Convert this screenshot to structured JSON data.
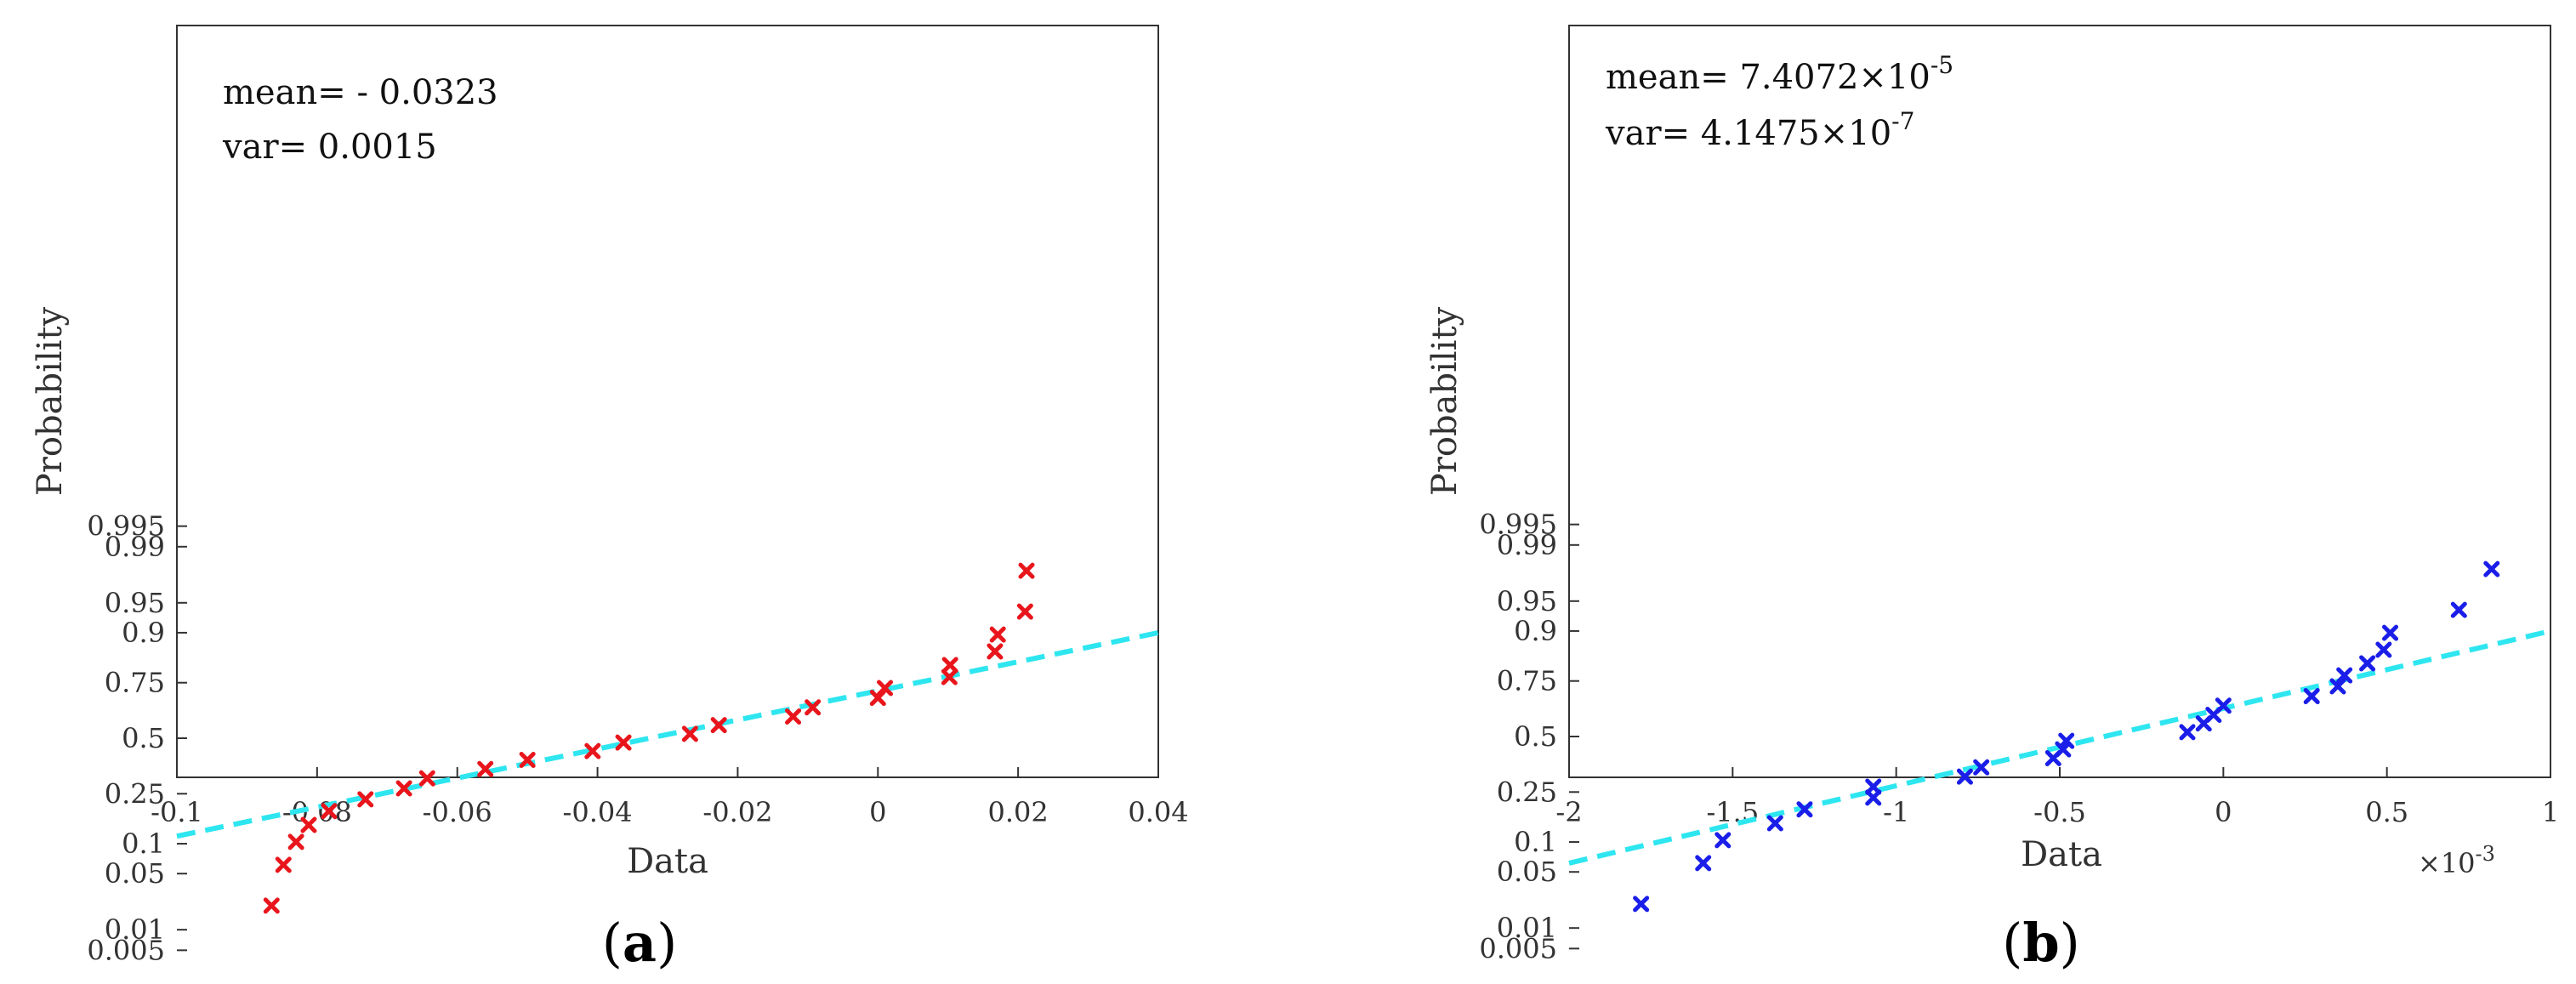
{
  "chart_data": [
    {
      "type": "scatter",
      "panel_label_open": "(",
      "panel_label": "a",
      "panel_label_close": ")",
      "xlabel": "Data",
      "ylabel": "Probability",
      "xlim": [
        -0.1,
        0.04
      ],
      "x_ticks": [
        -0.1,
        -0.08,
        -0.06,
        -0.04,
        -0.02,
        0,
        0.02,
        0.04
      ],
      "x_tick_labels": [
        "-0.1",
        "-0.08",
        "-0.06",
        "-0.04",
        "-0.02",
        "0",
        "0.02",
        "0.04"
      ],
      "y_ticks": [
        0.005,
        0.01,
        0.05,
        0.1,
        0.25,
        0.5,
        0.75,
        0.9,
        0.95,
        0.99,
        0.995
      ],
      "y_tick_labels": [
        "0.005",
        "0.01",
        "0.05",
        "0.1",
        "0.25",
        "0.5",
        "0.75",
        "0.9",
        "0.95",
        "0.99",
        "0.995"
      ],
      "annotations": [
        "mean= - 0.0323",
        "var= 0.0015"
      ],
      "marker_color": "#e8161c",
      "fit_color": "#2ee6f0",
      "fit_line": {
        "x": [
          -0.1,
          0.04
        ],
        "p": [
          0.117,
          0.9
        ]
      },
      "points": [
        {
          "x": -0.0865,
          "p": 0.021
        },
        {
          "x": -0.0848,
          "p": 0.062
        },
        {
          "x": -0.083,
          "p": 0.104
        },
        {
          "x": -0.0812,
          "p": 0.146
        },
        {
          "x": -0.0783,
          "p": 0.188
        },
        {
          "x": -0.0731,
          "p": 0.229
        },
        {
          "x": -0.0676,
          "p": 0.271
        },
        {
          "x": -0.0643,
          "p": 0.313
        },
        {
          "x": -0.056,
          "p": 0.354
        },
        {
          "x": -0.05,
          "p": 0.396
        },
        {
          "x": -0.0407,
          "p": 0.438
        },
        {
          "x": -0.0363,
          "p": 0.479
        },
        {
          "x": -0.0268,
          "p": 0.521
        },
        {
          "x": -0.0227,
          "p": 0.563
        },
        {
          "x": -0.0121,
          "p": 0.604
        },
        {
          "x": -0.0093,
          "p": 0.646
        },
        {
          "x": 0.0,
          "p": 0.688
        },
        {
          "x": 0.001,
          "p": 0.729
        },
        {
          "x": 0.0102,
          "p": 0.771
        },
        {
          "x": 0.0103,
          "p": 0.813
        },
        {
          "x": 0.0167,
          "p": 0.854
        },
        {
          "x": 0.0171,
          "p": 0.896
        },
        {
          "x": 0.021,
          "p": 0.938
        },
        {
          "x": 0.0212,
          "p": 0.979
        }
      ]
    },
    {
      "type": "scatter",
      "panel_label_open": "(",
      "panel_label": "b",
      "panel_label_close": ")",
      "xlabel": "Data",
      "ylabel": "Probability",
      "xlim": [
        -2,
        1
      ],
      "x_scale_label": "×10",
      "x_scale_exp": "-3",
      "x_ticks": [
        -2,
        -1.5,
        -1,
        -0.5,
        0,
        0.5,
        1
      ],
      "x_tick_labels": [
        "-2",
        "-1.5",
        "-1",
        "-0.5",
        "0",
        "0.5",
        "1"
      ],
      "y_ticks": [
        0.005,
        0.01,
        0.05,
        0.1,
        0.25,
        0.5,
        0.75,
        0.9,
        0.95,
        0.99,
        0.995
      ],
      "y_tick_labels": [
        "0.005",
        "0.01",
        "0.05",
        "0.1",
        "0.25",
        "0.5",
        "0.75",
        "0.9",
        "0.95",
        "0.99",
        "0.995"
      ],
      "annotations": [
        {
          "text": "mean= 7.4072×10",
          "exp": "-5"
        },
        {
          "text": "var= 4.1475×10",
          "exp": "-7"
        }
      ],
      "marker_color": "#1a1ee8",
      "fit_color": "#2ee6f0",
      "fit_line": {
        "x": [
          -2,
          1
        ],
        "p": [
          0.062,
          0.9
        ]
      },
      "points": [
        {
          "x": -1.78,
          "p": 0.021
        },
        {
          "x": -1.59,
          "p": 0.062
        },
        {
          "x": -1.53,
          "p": 0.104
        },
        {
          "x": -1.37,
          "p": 0.146
        },
        {
          "x": -1.28,
          "p": 0.188
        },
        {
          "x": -1.07,
          "p": 0.229
        },
        {
          "x": -1.07,
          "p": 0.271
        },
        {
          "x": -0.79,
          "p": 0.313
        },
        {
          "x": -0.74,
          "p": 0.354
        },
        {
          "x": -0.52,
          "p": 0.396
        },
        {
          "x": -0.49,
          "p": 0.438
        },
        {
          "x": -0.48,
          "p": 0.479
        },
        {
          "x": -0.11,
          "p": 0.521
        },
        {
          "x": -0.06,
          "p": 0.563
        },
        {
          "x": -0.03,
          "p": 0.604
        },
        {
          "x": 0.0,
          "p": 0.646
        },
        {
          "x": 0.27,
          "p": 0.688
        },
        {
          "x": 0.35,
          "p": 0.729
        },
        {
          "x": 0.37,
          "p": 0.771
        },
        {
          "x": 0.44,
          "p": 0.813
        },
        {
          "x": 0.49,
          "p": 0.854
        },
        {
          "x": 0.51,
          "p": 0.896
        },
        {
          "x": 0.72,
          "p": 0.938
        },
        {
          "x": 0.82,
          "p": 0.979
        }
      ]
    }
  ]
}
